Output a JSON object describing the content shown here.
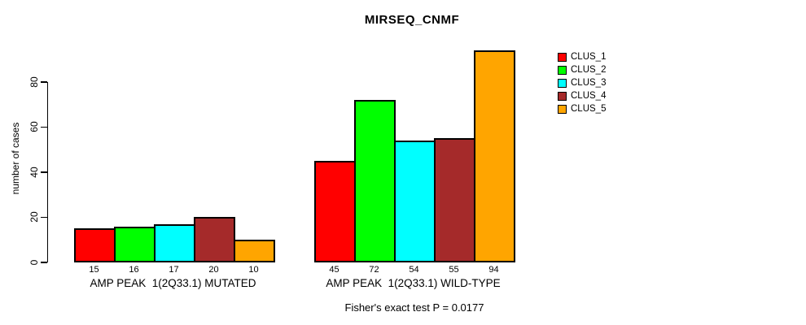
{
  "chart_data": {
    "type": "bar",
    "title": "MIRSEQ_CNMF",
    "ylabel": "number of cases",
    "ylim": [
      0,
      94
    ],
    "yticks": [
      0,
      20,
      40,
      60,
      80
    ],
    "grid": false,
    "legend_position": "right-inside",
    "bar_value_labels": true,
    "categories": [
      "AMP PEAK  1(2Q33.1) MUTATED",
      "AMP PEAK  1(2Q33.1) WILD-TYPE"
    ],
    "series": [
      {
        "name": "CLUS_1",
        "color": "#FF0000",
        "values": [
          15,
          45
        ]
      },
      {
        "name": "CLUS_2",
        "color": "#00FF00",
        "values": [
          16,
          72
        ]
      },
      {
        "name": "CLUS_3",
        "color": "#00FFFF",
        "values": [
          17,
          54
        ]
      },
      {
        "name": "CLUS_4",
        "color": "#A52A2A",
        "values": [
          20,
          55
        ]
      },
      {
        "name": "CLUS_5",
        "color": "#FFA500",
        "values": [
          10,
          94
        ]
      }
    ],
    "annotation": "Fisher's exact test P = 0.0177"
  }
}
